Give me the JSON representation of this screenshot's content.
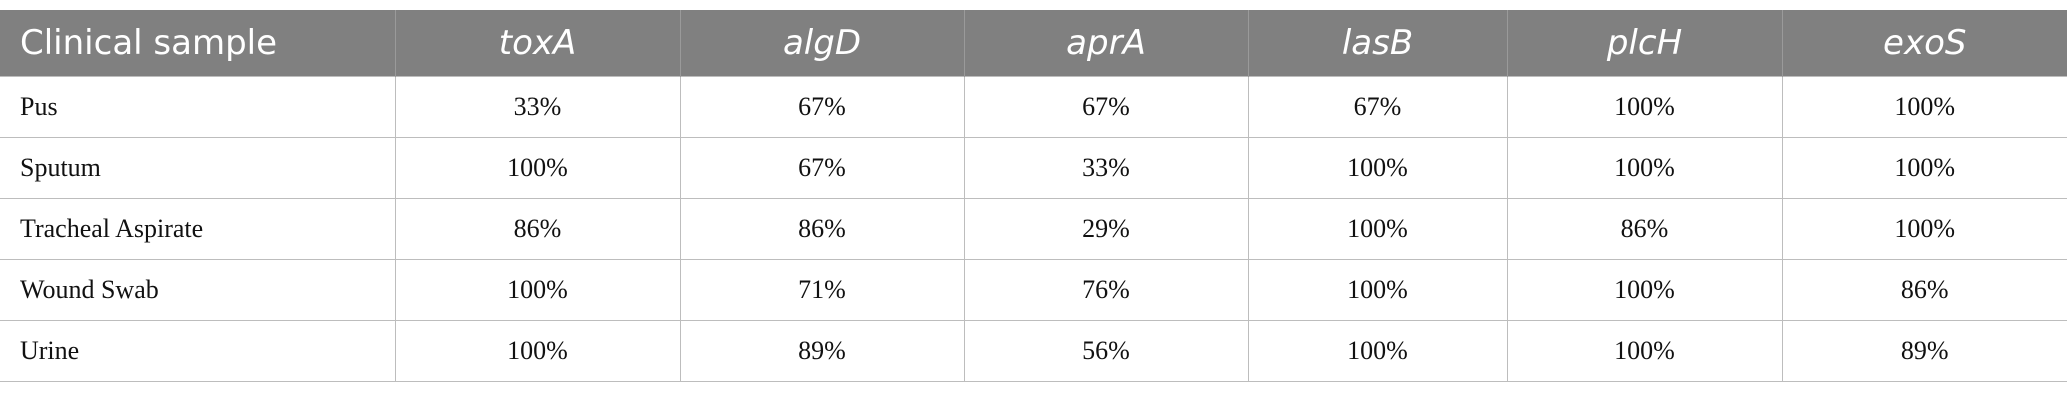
{
  "table": {
    "columns": [
      "Clinical sample",
      "toxA",
      "algD",
      "aprA",
      "lasB",
      "plcH",
      "exoS"
    ],
    "rows": [
      [
        "Pus",
        "33%",
        "67%",
        "67%",
        "67%",
        "100%",
        "100%"
      ],
      [
        "Sputum",
        "100%",
        "67%",
        "33%",
        "100%",
        "100%",
        "100%"
      ],
      [
        "Tracheal Aspirate",
        "86%",
        "86%",
        "29%",
        "100%",
        "86%",
        "100%"
      ],
      [
        "Wound Swab",
        "100%",
        "71%",
        "76%",
        "100%",
        "100%",
        "86%"
      ],
      [
        "Urine",
        "100%",
        "89%",
        "56%",
        "100%",
        "100%",
        "89%"
      ]
    ]
  }
}
